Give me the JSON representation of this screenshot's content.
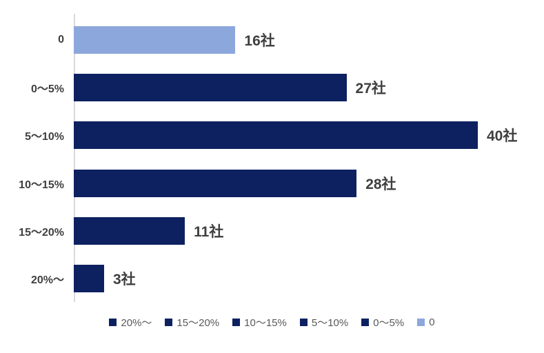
{
  "chart_data": {
    "type": "bar",
    "orientation": "horizontal",
    "title": "",
    "xlabel": "",
    "ylabel": "",
    "categories": [
      "0",
      "0～5%",
      "5～10%",
      "10～15%",
      "15～20%",
      "20%～"
    ],
    "values": [
      16,
      27,
      40,
      28,
      11,
      3
    ],
    "value_labels": [
      "16社",
      "27社",
      "40社",
      "28社",
      "11社",
      "3社"
    ],
    "unit": "社",
    "xlim": [
      0,
      40
    ],
    "grid": false,
    "bar_colors": [
      "#8ca7dc",
      "#0d2161",
      "#0d2161",
      "#0d2161",
      "#0d2161",
      "#0d2161"
    ],
    "legend": {
      "position": "bottom",
      "entries": [
        {
          "label": "20%～",
          "color": "#0d2161"
        },
        {
          "label": "15～20%",
          "color": "#0d2161"
        },
        {
          "label": "10～15%",
          "color": "#0d2161"
        },
        {
          "label": "5～10%",
          "color": "#0d2161"
        },
        {
          "label": "0～5%",
          "color": "#0d2161"
        },
        {
          "label": "0",
          "color": "#8ca7dc"
        }
      ]
    }
  },
  "colors": {
    "background": "#ffffff",
    "axis_line": "#d9d9d9",
    "category_text": "#3f3f3f",
    "value_text": "#3f3f3f",
    "legend_text": "#595959",
    "bar_dark": "#0d2161",
    "bar_light": "#8ca7dc"
  }
}
